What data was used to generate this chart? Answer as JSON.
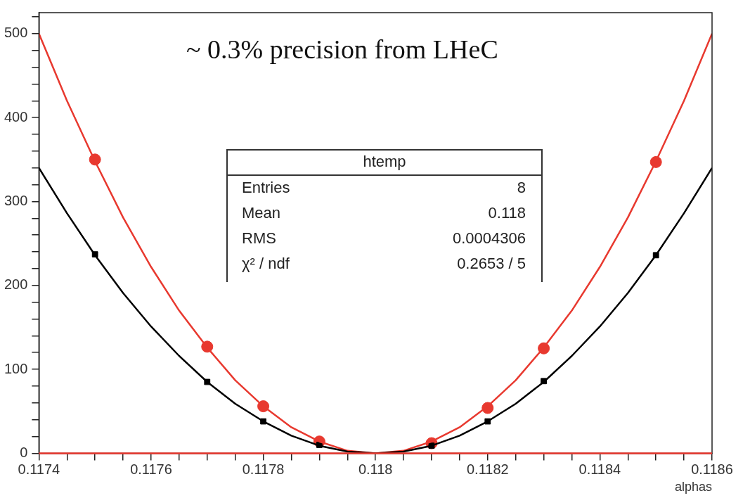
{
  "chart_data": {
    "type": "line",
    "xlabel": "alphas",
    "annotations": [
      "~ 0.3% precision from LHeC",
      "htemp",
      "Entries",
      "8",
      "Mean",
      "0.118",
      "RMS",
      "0.0004306",
      "χ² / ndf",
      "0.2653 / 5"
    ],
    "series": [
      {
        "type": "line",
        "marker": "none",
        "color": "#000000",
        "x": [
          0.1174,
          0.11745,
          0.1175,
          0.11755,
          0.1176,
          0.11765,
          0.1177,
          0.11775,
          0.1178,
          0.11785,
          0.1179,
          0.11795,
          0.118,
          0.11805,
          0.1181,
          0.11815,
          0.1182,
          0.11825,
          0.1183,
          0.11835,
          0.1184,
          0.11845,
          0.1185,
          0.11855,
          0.1186
        ],
        "values": [
          340,
          286,
          236,
          191,
          151,
          116,
          85,
          59,
          38,
          21,
          9,
          2,
          0,
          2,
          9,
          21,
          38,
          59,
          85,
          116,
          151,
          191,
          236,
          286,
          340
        ]
      },
      {
        "type": "line",
        "marker": "none",
        "color": "#e8392f",
        "x": [
          0.1174,
          0.11745,
          0.1175,
          0.11755,
          0.1176,
          0.11765,
          0.1177,
          0.11775,
          0.1178,
          0.11785,
          0.1179,
          0.11795,
          0.118,
          0.11805,
          0.1181,
          0.11815,
          0.1182,
          0.11825,
          0.1183,
          0.11835,
          0.1184,
          0.11845,
          0.1185,
          0.11855,
          0.1186
        ],
        "values": [
          500,
          420,
          348,
          281,
          222,
          170,
          126,
          87,
          56,
          31,
          14,
          3,
          0,
          3,
          14,
          31,
          56,
          87,
          126,
          170,
          222,
          281,
          348,
          420,
          500
        ]
      },
      {
        "type": "scatter",
        "marker": "square",
        "color": "#000000",
        "x": [
          0.1175,
          0.1177,
          0.1178,
          0.1179,
          0.1181,
          0.1182,
          0.1183,
          0.1185
        ],
        "values": [
          237,
          85,
          38,
          10,
          9,
          38,
          86,
          236
        ]
      },
      {
        "type": "scatter",
        "marker": "circle",
        "color": "#e8392f",
        "x": [
          0.1175,
          0.1177,
          0.1178,
          0.1179,
          0.1181,
          0.1182,
          0.1183,
          0.1185
        ],
        "values": [
          350,
          127,
          56,
          14,
          12,
          54,
          125,
          347
        ]
      }
    ],
    "ref_lines": [
      {
        "axis": "y",
        "value": 0,
        "color": "#e8392f"
      }
    ],
    "xlim": [
      0.1174,
      0.1186
    ],
    "xticks": [
      0.1174,
      {
        "value": 0.11745,
        "label": null
      },
      {
        "value": 0.1175,
        "label": null
      },
      {
        "value": 0.11755,
        "label": null
      },
      0.1176,
      {
        "value": 0.11765,
        "label": null
      },
      {
        "value": 0.1177,
        "label": null
      },
      {
        "value": 0.11775,
        "label": null
      },
      0.1178,
      {
        "value": 0.11785,
        "label": null
      },
      {
        "value": 0.1179,
        "label": null
      },
      {
        "value": 0.11795,
        "label": null
      },
      0.118,
      {
        "value": 0.11805,
        "label": null
      },
      {
        "value": 0.1181,
        "label": null
      },
      {
        "value": 0.11815,
        "label": null
      },
      0.1182,
      {
        "value": 0.11825,
        "label": null
      },
      {
        "value": 0.1183,
        "label": null
      },
      {
        "value": 0.11835,
        "label": null
      },
      0.1184,
      {
        "value": 0.11845,
        "label": null
      },
      {
        "value": 0.1185,
        "label": null
      },
      {
        "value": 0.11855,
        "label": null
      },
      0.1186
    ],
    "ylim": [
      0,
      525
    ],
    "yticks": [
      0,
      {
        "value": 20,
        "label": null
      },
      {
        "value": 40,
        "label": null
      },
      {
        "value": 60,
        "label": null
      },
      {
        "value": 80,
        "label": null
      },
      100,
      {
        "value": 120,
        "label": null
      },
      {
        "value": 140,
        "label": null
      },
      {
        "value": 160,
        "label": null
      },
      {
        "value": 180,
        "label": null
      },
      200,
      {
        "value": 220,
        "label": null
      },
      {
        "value": 240,
        "label": null
      },
      {
        "value": 260,
        "label": null
      },
      {
        "value": 280,
        "label": null
      },
      300,
      {
        "value": 320,
        "label": null
      },
      {
        "value": 340,
        "label": null
      },
      {
        "value": 360,
        "label": null
      },
      {
        "value": 380,
        "label": null
      },
      400,
      {
        "value": 420,
        "label": null
      },
      {
        "value": 440,
        "label": null
      },
      {
        "value": 460,
        "label": null
      },
      {
        "value": 480,
        "label": null
      },
      500,
      {
        "value": 520,
        "label": null
      }
    ],
    "grid": false,
    "legend": false
  }
}
